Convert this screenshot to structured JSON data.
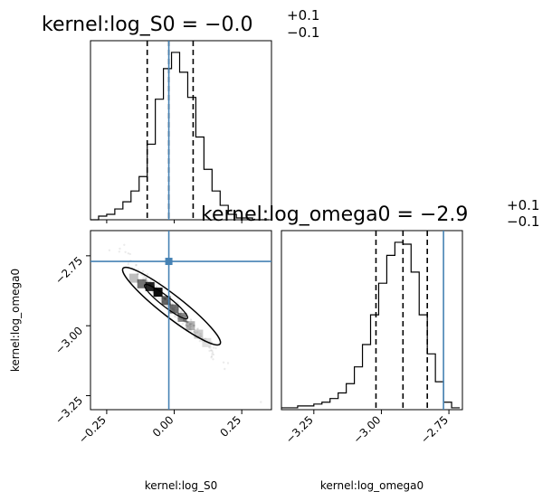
{
  "chart_data": {
    "type": "corner",
    "parameters": [
      "kernel:log_S0",
      "kernel:log_omega0"
    ],
    "truth": {
      "log_S0": -0.02,
      "log_omega0": -2.77
    },
    "titles": [
      {
        "prefix": "kernel:log_S0 = −0.0",
        "plus": "+0.1",
        "minus": "−0.1"
      },
      {
        "prefix": "kernel:log_omega0 = −2.9",
        "plus": "+0.1",
        "minus": "−0.1"
      }
    ],
    "marginal_log_S0": {
      "xlim": [
        -0.31,
        0.36
      ],
      "quantiles": [
        -0.1,
        -0.02,
        0.07
      ],
      "bin_edges": [
        -0.31,
        -0.28,
        -0.25,
        -0.22,
        -0.19,
        -0.16,
        -0.13,
        -0.1,
        -0.07,
        -0.04,
        -0.01,
        0.02,
        0.05,
        0.08,
        0.11,
        0.14,
        0.17,
        0.2,
        0.23,
        0.26,
        0.29,
        0.32,
        0.35
      ],
      "counts": [
        0,
        2,
        3,
        6,
        10,
        16,
        24,
        42,
        67,
        84,
        93,
        82,
        68,
        46,
        28,
        16,
        8,
        3,
        1,
        1,
        0,
        0
      ]
    },
    "marginal_log_omega0": {
      "xlim": [
        -3.37,
        -2.7
      ],
      "quantiles": [
        -3.02,
        -2.92,
        -2.83
      ],
      "bin_edges": [
        -3.37,
        -3.34,
        -3.31,
        -3.28,
        -3.25,
        -3.22,
        -3.19,
        -3.16,
        -3.13,
        -3.1,
        -3.07,
        -3.04,
        -3.01,
        -2.98,
        -2.95,
        -2.92,
        -2.89,
        -2.86,
        -2.83,
        -2.8,
        -2.77,
        -2.74,
        -2.71
      ],
      "counts": [
        1,
        1,
        2,
        2,
        3,
        4,
        6,
        9,
        14,
        23,
        35,
        51,
        68,
        83,
        90,
        89,
        74,
        51,
        30,
        15,
        4,
        1
      ]
    },
    "joint": {
      "xlim": [
        -0.31,
        0.36
      ],
      "ylim": [
        -3.3,
        -2.66
      ],
      "ellipse_center": [
        -0.01,
        -2.93
      ],
      "samples_direction": "negative correlation"
    },
    "x_ticks_log_S0": [
      "−0.25",
      "0.00",
      "0.25"
    ],
    "x_ticks_log_omega0": [
      "−3.25",
      "−3.00",
      "−2.75"
    ],
    "y_ticks_log_omega0": [
      "−2.75",
      "−3.00",
      "−3.25"
    ],
    "xlabel_left": "kernel:log_S0",
    "xlabel_right": "kernel:log_omega0",
    "ylabel_bottom": "kernel:log_omega0",
    "truth_color": "#4682b4"
  }
}
